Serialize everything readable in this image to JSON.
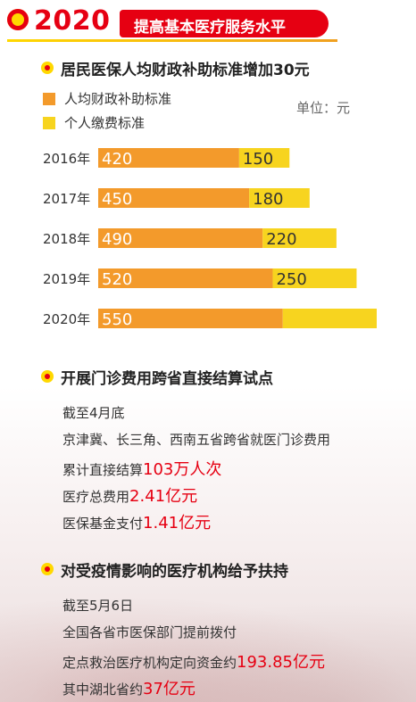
{
  "header": {
    "year": "2020",
    "title": "提高基本医疗服务水平"
  },
  "section1": {
    "title": "居民医保人均财政补助标准增加30元"
  },
  "legend": {
    "items": [
      {
        "label": "人均财政补助标准",
        "color": "#f39a2b"
      },
      {
        "label": "个人缴费标准",
        "color": "#f7d41f"
      }
    ],
    "unit": "单位：元"
  },
  "chart_data": {
    "type": "bar",
    "orientation": "horizontal",
    "stacked": true,
    "categories": [
      "2016年",
      "2017年",
      "2018年",
      "2019年",
      "2020年"
    ],
    "series": [
      {
        "name": "人均财政补助标准",
        "values": [
          420,
          450,
          490,
          520,
          550
        ],
        "color": "#f39a2b"
      },
      {
        "name": "个人缴费标准",
        "values": [
          150,
          180,
          220,
          250,
          280
        ],
        "color": "#f7d41f"
      }
    ],
    "value_labels": [
      [
        "420",
        "150"
      ],
      [
        "450",
        "180"
      ],
      [
        "490",
        "220"
      ],
      [
        "520",
        "250"
      ],
      [
        "550",
        ""
      ]
    ]
  },
  "section2": {
    "title": "开展门诊费用跨省直接结算试点",
    "lines": [
      {
        "text": "截至4月底",
        "highlight": ""
      },
      {
        "text": "京津冀、长三角、西南五省跨省就医门诊费用",
        "highlight": ""
      },
      {
        "text": "累计直接结算",
        "highlight": "103万人次"
      },
      {
        "text": "医疗总费用",
        "highlight": "2.41亿元"
      },
      {
        "text": "医保基金支付",
        "highlight": "1.41亿元"
      }
    ]
  },
  "section3": {
    "title": "对受疫情影响的医疗机构给予扶持",
    "lines": [
      {
        "text": "截至5月6日",
        "highlight": ""
      },
      {
        "text": "全国各省市医保部门提前拨付",
        "highlight": ""
      },
      {
        "text": "定点救治医疗机构定向资金约",
        "highlight": "193.85亿元"
      },
      {
        "text": "其中湖北省约",
        "highlight": "37亿元"
      }
    ]
  }
}
